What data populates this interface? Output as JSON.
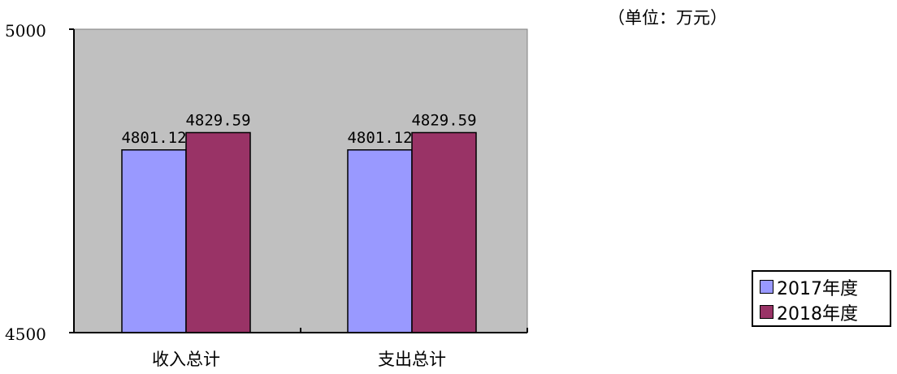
{
  "chart_data": {
    "type": "bar",
    "unit_label": "（单位：万元）",
    "categories": [
      "收入总计",
      "支出总计"
    ],
    "series": [
      {
        "name": "2017年度",
        "values": [
          4801.12,
          4801.12
        ],
        "labels": [
          "4801.12",
          "4801.12"
        ],
        "color": "#9999ff"
      },
      {
        "name": "2018年度",
        "values": [
          4829.59,
          4829.59
        ],
        "labels": [
          "4829.59",
          "4829.59"
        ],
        "color": "#993366"
      }
    ],
    "ylim": [
      4500,
      5000
    ],
    "yticks": [
      "4500",
      "5000"
    ],
    "plot_background": "#c0c0c0",
    "grid": false,
    "legend_position": "right"
  }
}
